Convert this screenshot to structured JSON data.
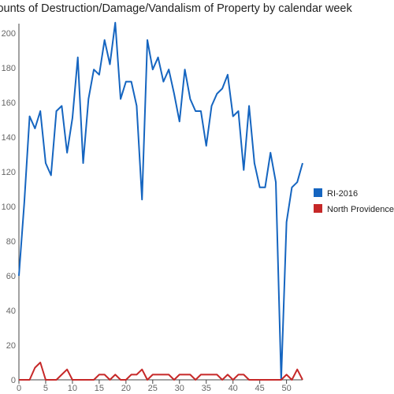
{
  "chart_data": {
    "type": "line",
    "title": "Counts of Destruction/Damage/Vandalism of Property by calendar week",
    "xlabel": "",
    "ylabel": "",
    "xlim": [
      0,
      53
    ],
    "ylim": [
      0,
      210
    ],
    "x_ticks": [
      0,
      5,
      10,
      15,
      20,
      25,
      30,
      35,
      40,
      45,
      50
    ],
    "y_ticks": [
      0,
      20,
      40,
      60,
      80,
      100,
      120,
      140,
      160,
      180,
      200
    ],
    "grid": false,
    "legend_position": "right",
    "x": [
      0,
      1,
      2,
      3,
      4,
      5,
      6,
      7,
      8,
      9,
      10,
      11,
      12,
      13,
      14,
      15,
      16,
      17,
      18,
      19,
      20,
      21,
      22,
      23,
      24,
      25,
      26,
      27,
      28,
      29,
      30,
      31,
      32,
      33,
      34,
      35,
      36,
      37,
      38,
      39,
      40,
      41,
      42,
      43,
      44,
      45,
      46,
      47,
      48,
      49,
      50,
      51,
      52,
      53
    ],
    "series": [
      {
        "name": "RI-2016",
        "color": "#1565c0",
        "values": [
          60,
          102,
          152,
          145,
          155,
          125,
          118,
          155,
          158,
          131,
          151,
          186,
          125,
          162,
          179,
          176,
          196,
          182,
          206,
          162,
          172,
          172,
          158,
          104,
          196,
          179,
          186,
          172,
          179,
          165,
          149,
          179,
          162,
          155,
          155,
          135,
          158,
          165,
          168,
          176,
          152,
          155,
          121,
          158,
          125,
          111,
          111,
          131,
          114,
          0,
          91,
          111,
          114,
          125
        ]
      },
      {
        "name": "North Providence",
        "color": "#c62828",
        "values": [
          0,
          0,
          0,
          7,
          10,
          0,
          0,
          0,
          3,
          6,
          0,
          0,
          0,
          0,
          0,
          3,
          3,
          0,
          3,
          0,
          0,
          3,
          3,
          6,
          0,
          3,
          3,
          3,
          3,
          0,
          3,
          3,
          3,
          0,
          3,
          3,
          3,
          3,
          0,
          3,
          0,
          3,
          3,
          0,
          0,
          0,
          0,
          0,
          0,
          0,
          3,
          0,
          6,
          0
        ]
      }
    ]
  }
}
